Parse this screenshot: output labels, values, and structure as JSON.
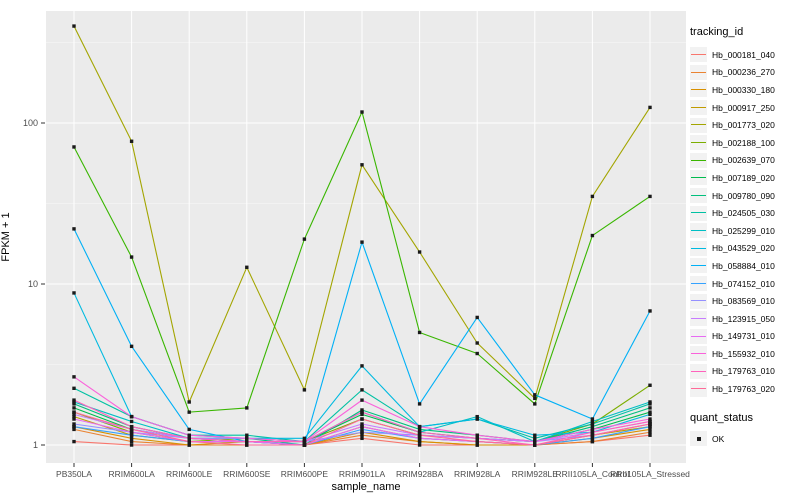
{
  "chart_data": {
    "type": "line",
    "title": "",
    "xlabel": "sample_name",
    "ylabel": "FPKM + 1",
    "y_scale": "log10",
    "y_ticks": [
      1,
      10,
      100
    ],
    "ylim": [
      0.9,
      500
    ],
    "grid": "on",
    "panel_color": "#EBEBEB",
    "grid_color": "#FFFFFF",
    "point_color": "#1a1a1a",
    "legend_position": "right",
    "legend_title": "tracking_id",
    "quant_status": {
      "title": "quant_status",
      "items": [
        {
          "label": "OK"
        }
      ]
    },
    "x_categories": [
      "PB350LA",
      "RRIM600LA",
      "RRIM600LE",
      "RRIM600SE",
      "RRIM600PE",
      "RRIM901LA",
      "RRIM928BA",
      "RRIM928LA",
      "RRIM928LE",
      "RRII105LA_Control",
      "RRII105LA_Stressed"
    ],
    "series": [
      {
        "name": "Hb_000181_040",
        "color": "#F8766D",
        "values": [
          1.05,
          1.0,
          1.0,
          1.0,
          1.0,
          1.1,
          1.0,
          1.0,
          1.0,
          1.05,
          1.15
        ]
      },
      {
        "name": "Hb_000236_270",
        "color": "#EA8331",
        "values": [
          1.25,
          1.05,
          1.0,
          1.0,
          1.0,
          1.15,
          1.05,
          1.0,
          1.0,
          1.05,
          1.2
        ]
      },
      {
        "name": "Hb_000330_180",
        "color": "#D89000",
        "values": [
          1.3,
          1.1,
          1.0,
          1.05,
          1.0,
          1.2,
          1.05,
          1.0,
          1.0,
          1.1,
          1.25
        ]
      },
      {
        "name": "Hb_000917_250",
        "color": "#C09B00",
        "values": [
          1.5,
          1.15,
          1.05,
          1.05,
          1.0,
          1.3,
          1.1,
          1.05,
          1.0,
          1.15,
          1.3
        ]
      },
      {
        "name": "Hb_001773_020",
        "color": "#A3A500",
        "values": [
          400,
          77,
          1.85,
          12.7,
          2.2,
          55,
          15.8,
          4.3,
          1.95,
          35,
          125
        ]
      },
      {
        "name": "Hb_002188_100",
        "color": "#7CAE00",
        "values": [
          1.6,
          1.2,
          1.05,
          1.1,
          1.05,
          1.45,
          1.15,
          1.1,
          1.05,
          1.35,
          2.35
        ]
      },
      {
        "name": "Hb_002639_070",
        "color": "#39B600",
        "values": [
          71,
          14.7,
          1.6,
          1.7,
          19,
          117,
          5.0,
          3.7,
          1.8,
          20,
          35
        ]
      },
      {
        "name": "Hb_007189_020",
        "color": "#00BB4E",
        "values": [
          1.7,
          1.25,
          1.1,
          1.05,
          1.05,
          1.55,
          1.2,
          1.1,
          1.05,
          1.25,
          1.6
        ]
      },
      {
        "name": "Hb_009780_090",
        "color": "#00BF7D",
        "values": [
          1.8,
          1.3,
          1.1,
          1.1,
          1.0,
          1.65,
          1.25,
          1.15,
          1.05,
          1.3,
          1.7
        ]
      },
      {
        "name": "Hb_024505_030",
        "color": "#00C1A3",
        "values": [
          2.25,
          1.5,
          1.15,
          1.15,
          1.05,
          2.2,
          1.3,
          1.45,
          1.1,
          1.35,
          1.8
        ]
      },
      {
        "name": "Hb_025299_010",
        "color": "#00BFC4",
        "values": [
          1.85,
          1.4,
          1.1,
          1.05,
          1.05,
          1.6,
          1.2,
          1.5,
          1.05,
          1.4,
          1.85
        ]
      },
      {
        "name": "Hb_043529_020",
        "color": "#00BAE0",
        "values": [
          8.8,
          1.5,
          1.15,
          1.1,
          1.1,
          3.1,
          1.3,
          1.45,
          1.15,
          1.2,
          1.55
        ]
      },
      {
        "name": "Hb_058884_010",
        "color": "#00B0F6",
        "values": [
          22,
          4.1,
          1.25,
          1.05,
          1.0,
          18.2,
          1.8,
          6.2,
          2.05,
          1.45,
          6.8
        ]
      },
      {
        "name": "Hb_074152_010",
        "color": "#35A2FF",
        "values": [
          1.3,
          1.15,
          1.05,
          1.05,
          1.0,
          1.25,
          1.1,
          1.05,
          1.0,
          1.1,
          1.3
        ]
      },
      {
        "name": "Hb_083569_010",
        "color": "#9590FF",
        "values": [
          1.35,
          1.2,
          1.1,
          1.1,
          1.05,
          1.2,
          1.15,
          1.1,
          1.05,
          1.15,
          1.35
        ]
      },
      {
        "name": "Hb_123915_050",
        "color": "#C77CFF",
        "values": [
          1.55,
          1.25,
          1.1,
          1.05,
          1.05,
          1.35,
          1.15,
          1.1,
          1.05,
          1.2,
          1.4
        ]
      },
      {
        "name": "Hb_149731_010",
        "color": "#E76BF3",
        "values": [
          1.45,
          1.2,
          1.05,
          1.05,
          1.0,
          1.3,
          1.1,
          1.05,
          1.0,
          1.15,
          1.35
        ]
      },
      {
        "name": "Hb_155932_010",
        "color": "#FA62DB",
        "values": [
          2.65,
          1.5,
          1.15,
          1.1,
          1.05,
          1.9,
          1.3,
          1.15,
          1.05,
          1.25,
          1.45
        ]
      },
      {
        "name": "Hb_179763_010",
        "color": "#FF62BC",
        "values": [
          1.9,
          1.3,
          1.1,
          1.05,
          1.05,
          1.6,
          1.2,
          1.1,
          1.0,
          1.2,
          1.4
        ]
      },
      {
        "name": "Hb_179763_020",
        "color": "#FF6A98",
        "values": [
          1.6,
          1.25,
          1.05,
          1.0,
          1.0,
          1.45,
          1.15,
          1.05,
          1.0,
          1.15,
          1.35
        ]
      }
    ]
  }
}
